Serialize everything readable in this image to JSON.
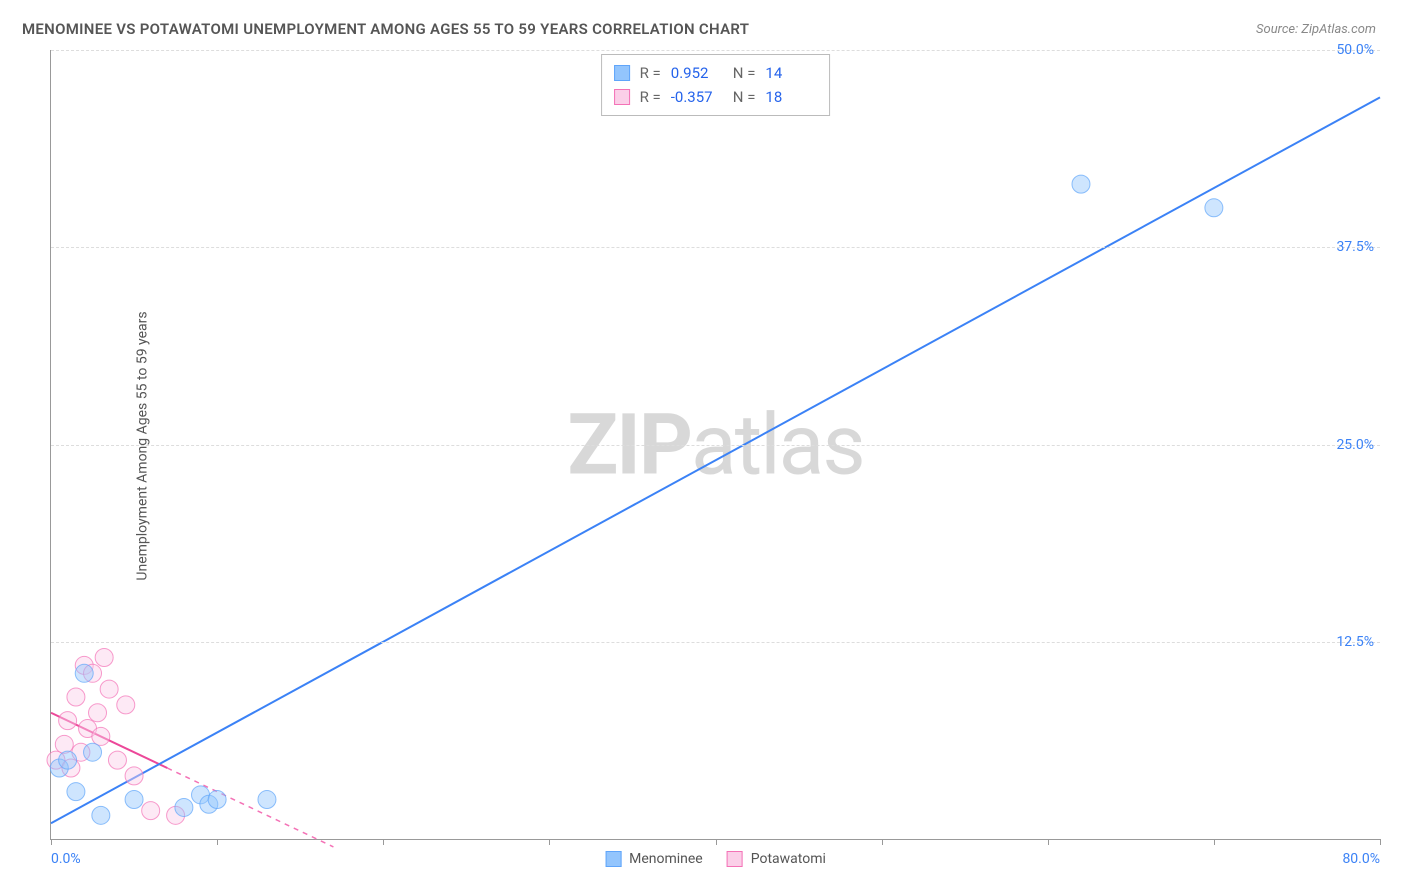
{
  "title": "MENOMINEE VS POTAWATOMI UNEMPLOYMENT AMONG AGES 55 TO 59 YEARS CORRELATION CHART",
  "source": "Source: ZipAtlas.com",
  "y_axis_label": "Unemployment Among Ages 55 to 59 years",
  "watermark_bold": "ZIP",
  "watermark_light": "atlas",
  "chart": {
    "type": "scatter",
    "background_color": "#ffffff",
    "grid_color": "#dddddd",
    "axis_color": "#999999",
    "xlim": [
      0,
      80
    ],
    "ylim": [
      0,
      50
    ],
    "x_ticks": [
      0,
      10,
      20,
      30,
      40,
      50,
      60,
      70,
      80
    ],
    "x_tick_labels": {
      "0": "0.0%",
      "80": "80.0%"
    },
    "y_ticks": [
      12.5,
      25.0,
      37.5,
      50.0
    ],
    "y_tick_labels": [
      "12.5%",
      "25.0%",
      "37.5%",
      "50.0%"
    ],
    "marker_radius": 9,
    "marker_opacity": 0.45,
    "line_width": 2,
    "series": [
      {
        "name": "Menominee",
        "color": "#3b82f6",
        "fill": "#93c5fd",
        "stroke": "#60a5fa",
        "R": "0.952",
        "N": "14",
        "points": [
          [
            0.5,
            4.5
          ],
          [
            1.0,
            5.0
          ],
          [
            1.5,
            3.0
          ],
          [
            2.0,
            10.5
          ],
          [
            2.5,
            5.5
          ],
          [
            3.0,
            1.5
          ],
          [
            5.0,
            2.5
          ],
          [
            8.0,
            2.0
          ],
          [
            9.0,
            2.8
          ],
          [
            9.5,
            2.2
          ],
          [
            10.0,
            2.5
          ],
          [
            13.0,
            2.5
          ],
          [
            62.0,
            41.5
          ],
          [
            70.0,
            40.0
          ]
        ],
        "trend": {
          "x1": 0,
          "y1": 1.0,
          "x2": 80,
          "y2": 47.0,
          "dash": "none"
        }
      },
      {
        "name": "Potawatomi",
        "color": "#ec4899",
        "fill": "#fbcfe8",
        "stroke": "#f472b6",
        "R": "-0.357",
        "N": "18",
        "points": [
          [
            0.3,
            5.0
          ],
          [
            0.8,
            6.0
          ],
          [
            1.0,
            7.5
          ],
          [
            1.2,
            4.5
          ],
          [
            1.5,
            9.0
          ],
          [
            1.8,
            5.5
          ],
          [
            2.0,
            11.0
          ],
          [
            2.2,
            7.0
          ],
          [
            2.5,
            10.5
          ],
          [
            2.8,
            8.0
          ],
          [
            3.0,
            6.5
          ],
          [
            3.2,
            11.5
          ],
          [
            3.5,
            9.5
          ],
          [
            4.0,
            5.0
          ],
          [
            4.5,
            8.5
          ],
          [
            5.0,
            4.0
          ],
          [
            6.0,
            1.8
          ],
          [
            7.5,
            1.5
          ]
        ],
        "trend_solid": {
          "x1": 0,
          "y1": 8.0,
          "x2": 7,
          "y2": 4.5
        },
        "trend_dash": {
          "x1": 7,
          "y1": 4.5,
          "x2": 17,
          "y2": -0.5
        }
      }
    ]
  },
  "legend": [
    {
      "label": "Menominee",
      "fill": "#bfdbfe",
      "stroke": "#60a5fa"
    },
    {
      "label": "Potawatomi",
      "fill": "#fbcfe8",
      "stroke": "#f472b6"
    }
  ]
}
